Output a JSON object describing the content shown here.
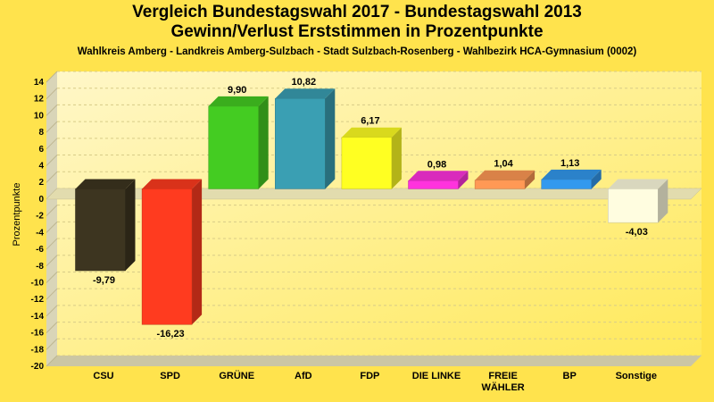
{
  "title": "Vergleich Bundestagswahl 2017 - Bundestagswahl 2013",
  "subtitle": "Gewinn/Verlust Erststimmen in Prozentpunkte",
  "caption": "Wahlkreis Amberg - Landkreis Amberg-Sulzbach - Stadt Sulzbach-Rosenberg - Wahlbezirk HCA-Gymnasium (0002)",
  "chart_data": {
    "type": "bar",
    "title": "Vergleich Bundestagswahl 2017 - Bundestagswahl 2013",
    "subtitle": "Gewinn/Verlust Erststimmen in Prozentpunkte",
    "xlabel": "",
    "ylabel": "Prozentpunkte",
    "ylim": [
      -20,
      14
    ],
    "yticks": [
      14,
      12,
      10,
      8,
      6,
      4,
      2,
      0,
      -2,
      -4,
      -6,
      -8,
      -10,
      -12,
      -14,
      -16,
      -18,
      -20
    ],
    "grid": true,
    "categories": [
      [
        "CSU"
      ],
      [
        "SPD"
      ],
      [
        "GRÜNE"
      ],
      [
        "AfD"
      ],
      [
        "FDP"
      ],
      [
        "DIE LINKE"
      ],
      [
        "FREIE",
        "WÄHLER"
      ],
      [
        "BP"
      ],
      [
        "Sonstige"
      ]
    ],
    "values": [
      -9.79,
      -16.23,
      9.9,
      10.82,
      6.17,
      0.98,
      1.04,
      1.13,
      -4.03
    ],
    "value_labels": [
      "-9,79",
      "-16,23",
      "9,90",
      "10,82",
      "6,17",
      "0,98",
      "1,04",
      "1,13",
      "-4,03"
    ],
    "colors": [
      "#3d3520",
      "#ff3b1f",
      "#44cc22",
      "#3a9fb3",
      "#ffff22",
      "#ff33dd",
      "#ff9955",
      "#3399ee",
      "#fffde0"
    ]
  }
}
